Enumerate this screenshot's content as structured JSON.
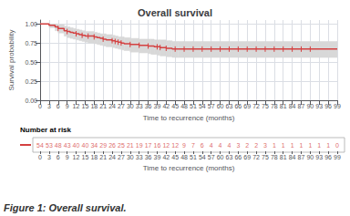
{
  "chart_data": {
    "type": "line",
    "title": "Overall survival",
    "xlabel": "Time to recurrence (months)",
    "ylabel": "Survival probability",
    "caption": "Figure 1: Overall survival.",
    "x": [
      0,
      3,
      5,
      6,
      8,
      9,
      10,
      11,
      12,
      13,
      14,
      15,
      16,
      18,
      19,
      20,
      21,
      22,
      24,
      25,
      26,
      27,
      28,
      30,
      33,
      36,
      37,
      38,
      39,
      40,
      42,
      43,
      44,
      45,
      46,
      48,
      51,
      54,
      57,
      60,
      63,
      66,
      69,
      72,
      75,
      78,
      81,
      84,
      87,
      90,
      93,
      96,
      99
    ],
    "series": [
      {
        "type": "band",
        "color": "#d8d8d8",
        "lower": [
          1.0,
          0.95,
          0.91,
          0.88,
          0.84,
          0.82,
          0.81,
          0.8,
          0.79,
          0.78,
          0.77,
          0.76,
          0.75,
          0.74,
          0.73,
          0.72,
          0.71,
          0.7,
          0.69,
          0.68,
          0.67,
          0.66,
          0.65,
          0.63,
          0.62,
          0.61,
          0.6,
          0.6,
          0.59,
          0.58,
          0.57,
          0.57,
          0.56,
          0.56,
          0.56,
          0.56,
          0.56,
          0.56,
          0.56,
          0.56,
          0.56,
          0.56,
          0.56,
          0.56,
          0.56,
          0.56,
          0.56,
          0.56,
          0.56,
          0.56,
          0.56,
          0.56,
          0.56
        ],
        "upper": [
          1.0,
          1.0,
          1.0,
          0.99,
          0.97,
          0.96,
          0.95,
          0.94,
          0.93,
          0.92,
          0.91,
          0.9,
          0.9,
          0.89,
          0.88,
          0.87,
          0.87,
          0.86,
          0.85,
          0.84,
          0.83,
          0.83,
          0.82,
          0.81,
          0.8,
          0.8,
          0.8,
          0.79,
          0.79,
          0.79,
          0.78,
          0.78,
          0.77,
          0.77,
          0.77,
          0.77,
          0.77,
          0.77,
          0.77,
          0.77,
          0.77,
          0.77,
          0.77,
          0.77,
          0.77,
          0.77,
          0.77,
          0.77,
          0.77,
          0.77,
          0.77,
          0.77,
          0.77
        ]
      },
      {
        "type": "line",
        "line_style": "step",
        "color": "#d44040",
        "values": [
          1.0,
          0.98,
          0.96,
          0.94,
          0.91,
          0.9,
          0.89,
          0.88,
          0.87,
          0.86,
          0.85,
          0.84,
          0.84,
          0.83,
          0.82,
          0.81,
          0.8,
          0.79,
          0.78,
          0.77,
          0.76,
          0.75,
          0.74,
          0.73,
          0.72,
          0.71,
          0.71,
          0.7,
          0.7,
          0.69,
          0.68,
          0.68,
          0.67,
          0.67,
          0.67,
          0.67,
          0.67,
          0.67,
          0.67,
          0.67,
          0.67,
          0.67,
          0.67,
          0.67,
          0.67,
          0.67,
          0.67,
          0.67,
          0.67,
          0.67,
          0.67,
          0.67,
          0.67
        ]
      }
    ],
    "censored": {
      "x": [
        6,
        9,
        12,
        14,
        16,
        18,
        21,
        24,
        25,
        26,
        27,
        30,
        33,
        36,
        39,
        40,
        42,
        45,
        48,
        51,
        54,
        57,
        60,
        63,
        66,
        69,
        72,
        75,
        78,
        81,
        84,
        87,
        90
      ],
      "y": [
        0.94,
        0.9,
        0.87,
        0.85,
        0.84,
        0.83,
        0.8,
        0.78,
        0.77,
        0.76,
        0.75,
        0.73,
        0.72,
        0.71,
        0.7,
        0.69,
        0.68,
        0.67,
        0.67,
        0.67,
        0.67,
        0.67,
        0.67,
        0.67,
        0.67,
        0.67,
        0.67,
        0.67,
        0.67,
        0.67,
        0.67,
        0.67,
        0.67
      ]
    },
    "xlim": [
      0,
      99
    ],
    "ylim": [
      0.0,
      1.05
    ],
    "xticks": [
      0,
      3,
      6,
      9,
      12,
      15,
      18,
      21,
      24,
      27,
      30,
      33,
      36,
      39,
      42,
      45,
      48,
      51,
      54,
      57,
      60,
      63,
      66,
      69,
      72,
      75,
      78,
      81,
      84,
      87,
      90,
      93,
      96,
      99
    ],
    "yticks": [
      {
        "value": 0.0,
        "label": "0.00"
      },
      {
        "value": 0.25,
        "label": "0.25"
      },
      {
        "value": 0.5,
        "label": "0.50"
      },
      {
        "value": 0.75,
        "label": "0.75"
      },
      {
        "value": 1.0,
        "label": "1.00"
      }
    ],
    "grid": true,
    "risk_table": {
      "title": "Number at risk",
      "x": [
        0,
        3,
        6,
        9,
        12,
        15,
        18,
        21,
        24,
        27,
        30,
        33,
        36,
        39,
        42,
        45,
        48,
        51,
        54,
        57,
        60,
        63,
        66,
        69,
        72,
        75,
        78,
        81,
        84,
        87,
        90,
        93,
        96,
        99
      ],
      "values": [
        54,
        53,
        48,
        43,
        40,
        40,
        34,
        29,
        26,
        25,
        21,
        19,
        17,
        16,
        12,
        12,
        9,
        7,
        6,
        4,
        4,
        4,
        3,
        2,
        2,
        3,
        1,
        1,
        1,
        1,
        1,
        1,
        1,
        0
      ]
    }
  }
}
